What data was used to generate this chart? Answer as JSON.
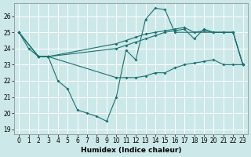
{
  "xlabel": "Humidex (Indice chaleur)",
  "background_color": "#cce8e8",
  "grid_color": "#ffffff",
  "line_color": "#1a7070",
  "xlim": [
    -0.5,
    23.5
  ],
  "ylim": [
    18.7,
    26.8
  ],
  "xticks": [
    0,
    1,
    2,
    3,
    4,
    5,
    6,
    7,
    8,
    9,
    10,
    11,
    12,
    13,
    14,
    15,
    16,
    17,
    18,
    19,
    20,
    21,
    22,
    23
  ],
  "yticks": [
    19,
    20,
    21,
    22,
    23,
    24,
    25,
    26
  ],
  "line1_x": [
    0,
    1,
    2,
    3,
    4,
    5,
    6,
    7,
    8,
    9,
    10,
    11,
    12,
    13,
    14,
    15,
    16,
    22,
    23
  ],
  "line1_y": [
    25,
    24,
    23.5,
    23.5,
    22,
    21.5,
    20.2,
    20.0,
    19.8,
    19.5,
    21.0,
    23.9,
    23.3,
    25.8,
    26.5,
    26.4,
    25.0,
    25.0,
    23.0
  ],
  "line2_x": [
    0,
    2,
    3,
    10,
    11,
    12,
    13,
    14,
    15,
    16,
    17,
    18,
    19,
    20,
    21,
    22,
    23
  ],
  "line2_y": [
    25,
    23.5,
    23.5,
    24.3,
    24.5,
    24.7,
    24.9,
    25.0,
    25.1,
    25.2,
    25.3,
    25.0,
    25.1,
    25.0,
    25.0,
    25.0,
    23.0
  ],
  "line3_x": [
    0,
    2,
    3,
    10,
    11,
    12,
    13,
    14,
    15,
    16,
    17,
    18,
    19,
    20,
    21,
    22,
    23
  ],
  "line3_y": [
    25,
    23.5,
    23.5,
    22.2,
    22.2,
    22.2,
    22.3,
    22.5,
    22.5,
    22.8,
    23.0,
    23.1,
    23.2,
    23.3,
    23.0,
    23.0,
    23.0
  ],
  "line4_x": [
    0,
    2,
    3,
    10,
    11,
    12,
    13,
    14,
    15,
    16,
    17,
    18,
    19,
    20,
    21,
    22,
    23
  ],
  "line4_y": [
    25,
    23.5,
    23.5,
    24.0,
    24.2,
    24.4,
    24.6,
    24.8,
    25.0,
    25.1,
    25.2,
    24.6,
    25.2,
    25.0,
    25.0,
    25.0,
    23.0
  ]
}
